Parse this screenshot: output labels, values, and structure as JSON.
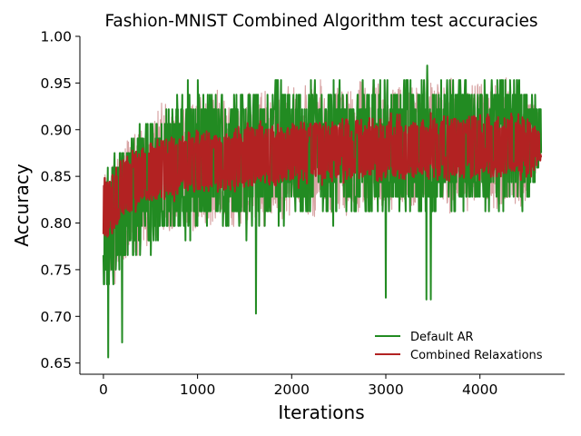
{
  "chart_data": {
    "type": "line",
    "title": "Fashion-MNIST Combined Algorithm test accuracies",
    "xlabel": "Iterations",
    "ylabel": "Accuracy",
    "xlim": [
      -250,
      4900
    ],
    "ylim": [
      0.638,
      1.0
    ],
    "xticks": [
      0,
      1000,
      2000,
      3000,
      4000
    ],
    "xtick_labels": [
      "0",
      "1000",
      "2000",
      "3000",
      "4000"
    ],
    "yticks": [
      0.65,
      0.7,
      0.75,
      0.8,
      0.85,
      0.9,
      0.95,
      1.0
    ],
    "ytick_labels": [
      "0.65",
      "0.70",
      "0.75",
      "0.80",
      "0.85",
      "0.90",
      "0.95",
      "1.00"
    ],
    "grid": false,
    "legend": {
      "position": "lower-right",
      "entries": [
        "Default AR",
        "Combined Relaxations"
      ]
    },
    "colors": {
      "default_ar": "#228b22",
      "combined": "#b22222",
      "combined_faint": "#d49a9a"
    },
    "series": [
      {
        "name": "Default AR",
        "color": "#228b22",
        "description_points_x": [
          0,
          250,
          500,
          750,
          1000,
          1500,
          2000,
          2500,
          3000,
          3500,
          4000,
          4500,
          4650
        ],
        "upper_envelope": [
          0.86,
          0.9,
          0.93,
          0.95,
          0.955,
          0.955,
          0.96,
          0.965,
          0.965,
          0.968,
          0.97,
          0.97,
          0.93
        ],
        "lower_envelope": [
          0.7,
          0.74,
          0.76,
          0.77,
          0.775,
          0.78,
          0.79,
          0.795,
          0.8,
          0.8,
          0.805,
          0.8,
          0.86
        ],
        "center": [
          0.8,
          0.83,
          0.85,
          0.86,
          0.865,
          0.868,
          0.872,
          0.875,
          0.878,
          0.88,
          0.882,
          0.883,
          0.88
        ],
        "outliers": [
          [
            50,
            0.656
          ],
          [
            200,
            0.672
          ],
          [
            1620,
            0.703
          ],
          [
            3430,
            0.718
          ],
          [
            3480,
            0.718
          ],
          [
            3000,
            0.72
          ]
        ]
      },
      {
        "name": "Combined Relaxations",
        "color": "#b22222",
        "description_points_x": [
          0,
          250,
          500,
          750,
          1000,
          1500,
          2000,
          2500,
          3000,
          3500,
          4000,
          4500,
          4650
        ],
        "upper_envelope": [
          0.86,
          0.88,
          0.895,
          0.9,
          0.905,
          0.91,
          0.915,
          0.918,
          0.92,
          0.92,
          0.922,
          0.923,
          0.9
        ],
        "lower_envelope": [
          0.77,
          0.8,
          0.815,
          0.82,
          0.825,
          0.83,
          0.835,
          0.838,
          0.84,
          0.84,
          0.842,
          0.843,
          0.86
        ],
        "center": [
          0.81,
          0.84,
          0.855,
          0.862,
          0.866,
          0.869,
          0.873,
          0.876,
          0.878,
          0.88,
          0.882,
          0.883,
          0.88
        ]
      }
    ]
  }
}
